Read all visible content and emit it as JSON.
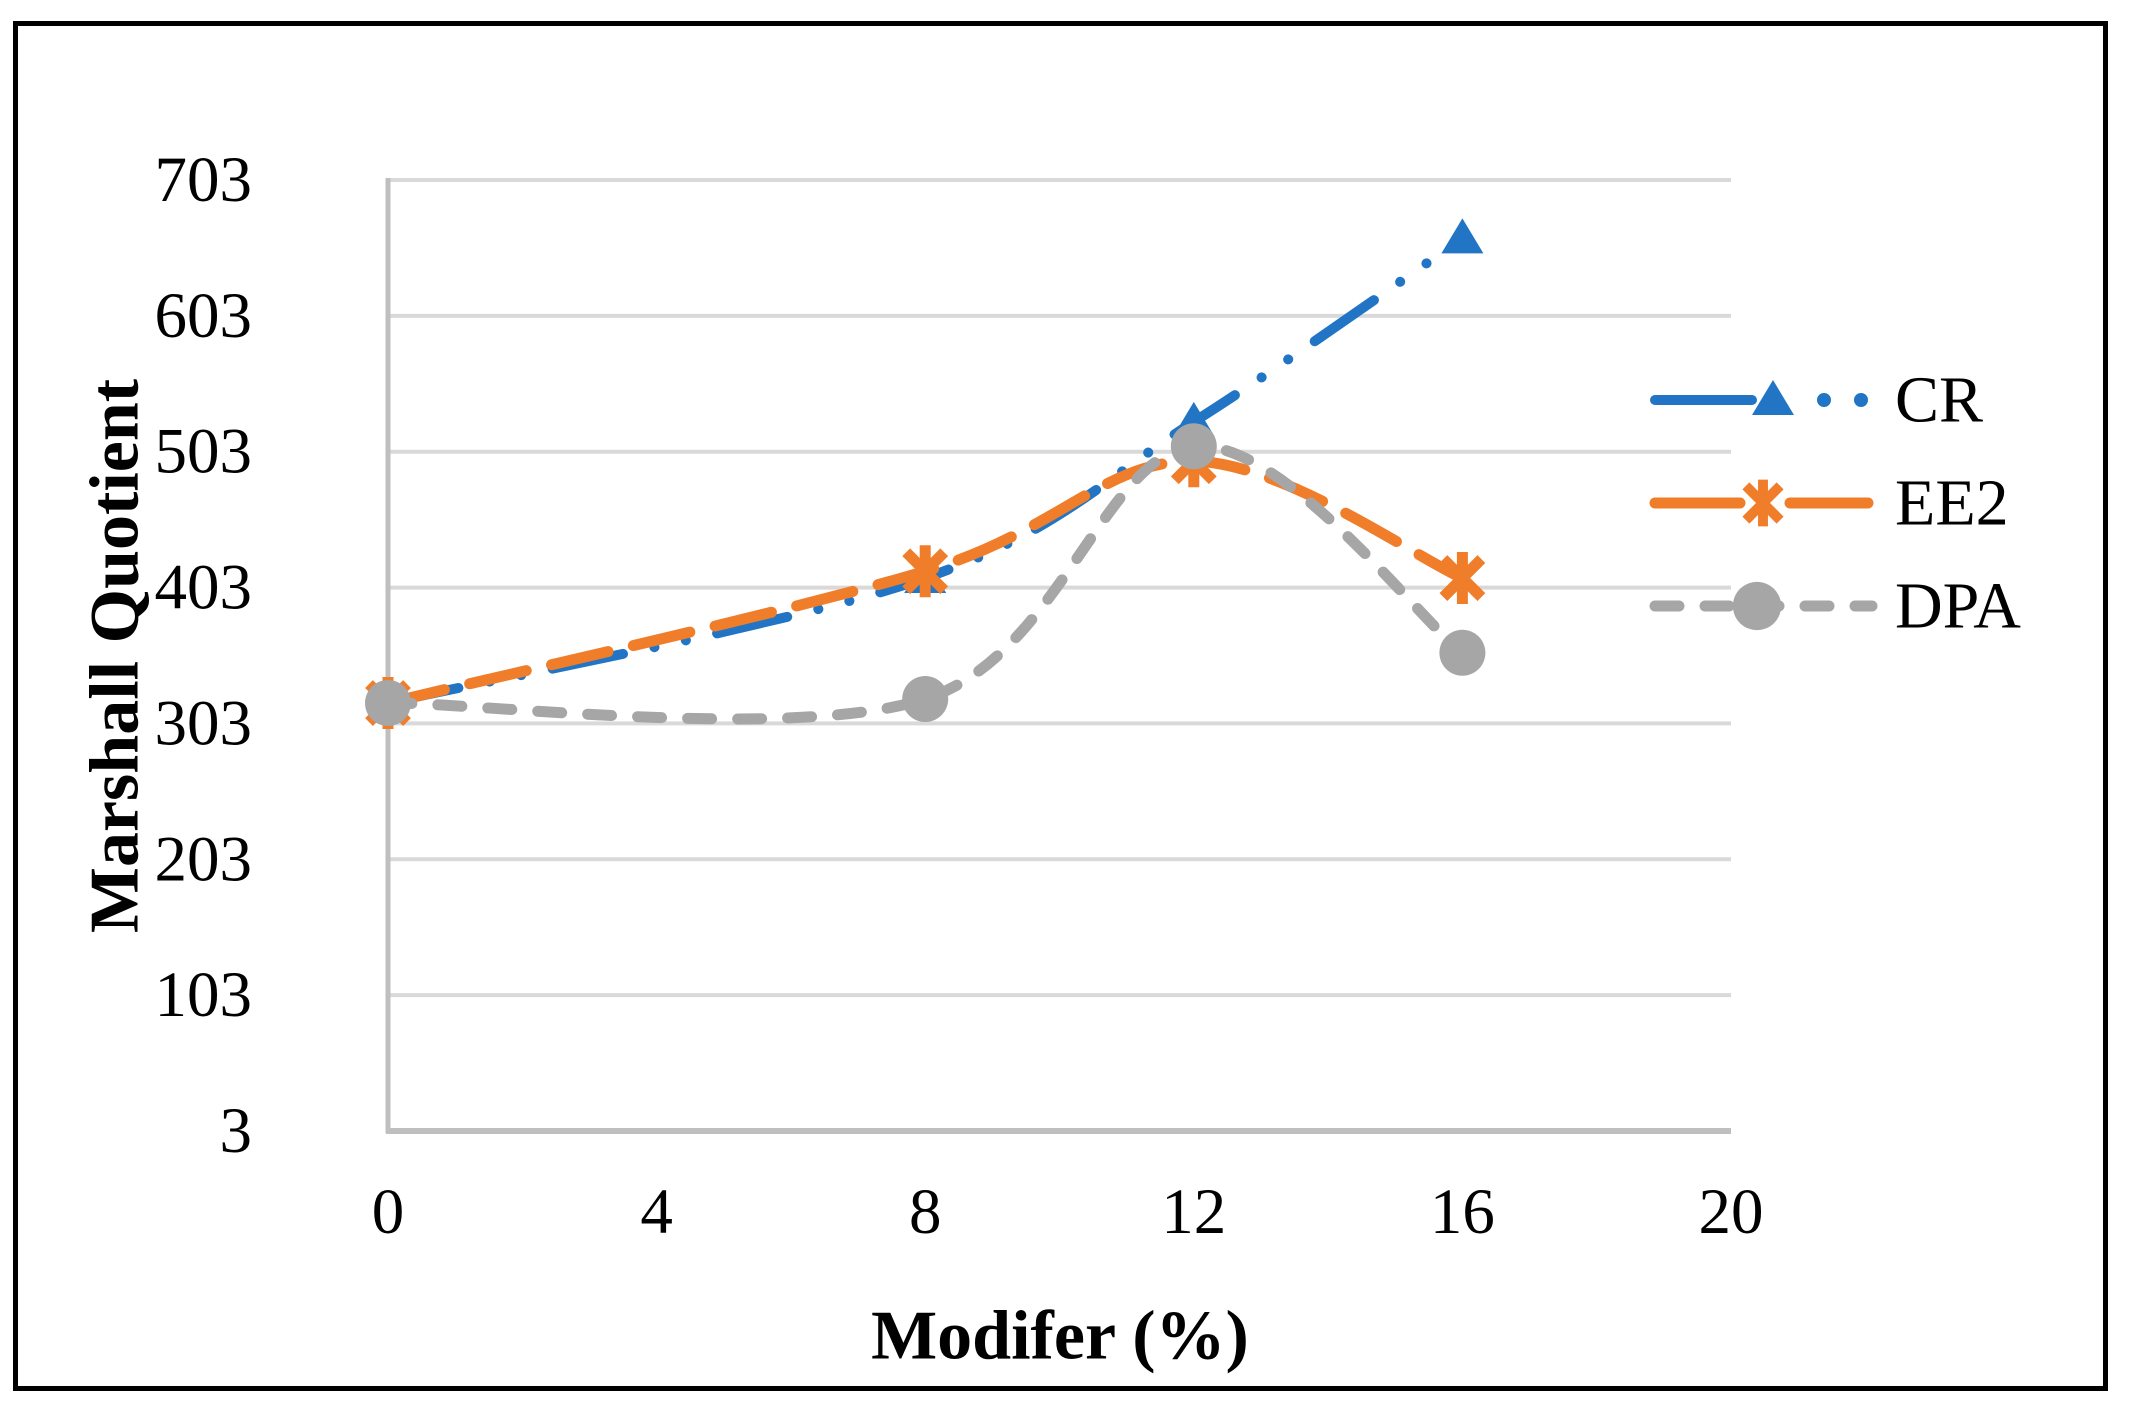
{
  "chart_data": {
    "type": "line",
    "title": "",
    "xlabel": "Modifer (%)",
    "ylabel": "Marshall Quotient",
    "x": [
      0,
      8,
      12,
      16
    ],
    "x_ticks": [
      0,
      4,
      8,
      12,
      16,
      20
    ],
    "y_ticks": [
      703,
      603,
      503,
      403,
      303,
      203,
      103,
      3
    ],
    "xlim": [
      0,
      20
    ],
    "ylim": [
      3,
      703
    ],
    "grid": "horizontal-only",
    "smooth_lines": true,
    "legend_position": "right",
    "series": [
      {
        "name": "CR",
        "color": "#2175C4",
        "marker": "triangle",
        "line_style": "dash-dot-dot",
        "values": [
          318,
          410,
          525,
          660
        ]
      },
      {
        "name": "EE2",
        "color": "#F07D2A",
        "marker": "asterisk",
        "line_style": "long-dash",
        "values": [
          318,
          415,
          496,
          410
        ]
      },
      {
        "name": "DPA",
        "color": "#A6A6A6",
        "marker": "circle",
        "line_style": "dash",
        "values": [
          318,
          321,
          507,
          355
        ]
      }
    ]
  },
  "colors": {
    "gridline": "#D9D9D9",
    "axis_line": "#BFBFBF",
    "text": "#000000",
    "frame_border": "#000000",
    "background": "#FFFFFF"
  }
}
